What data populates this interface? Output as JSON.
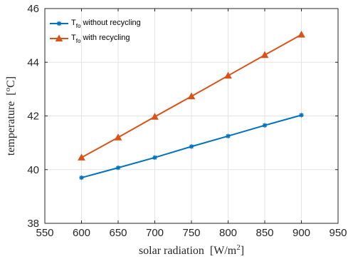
{
  "chart_data": {
    "type": "line",
    "x": [
      600,
      650,
      700,
      750,
      800,
      850,
      900
    ],
    "series": [
      {
        "name": "T",
        "name_subscript": "fo",
        "name_suffix": " without recycling",
        "values": [
          39.7,
          40.07,
          40.45,
          40.86,
          41.25,
          41.65,
          42.03
        ],
        "color": "#0072BD",
        "marker": "asterisk"
      },
      {
        "name": "T",
        "name_subscript": "fo",
        "name_suffix": " with recycling",
        "values": [
          40.45,
          41.2,
          41.97,
          42.73,
          43.5,
          44.27,
          45.03
        ],
        "color": "#D95319",
        "marker": "triangle"
      }
    ],
    "xlim": [
      550,
      950
    ],
    "ylim": [
      38,
      46
    ],
    "xticks": [
      "550",
      "600",
      "650",
      "700",
      "750",
      "800",
      "850",
      "900",
      "950"
    ],
    "yticks": [
      "38",
      "40",
      "42",
      "44",
      "46"
    ],
    "xlabel": "solar radiation",
    "xlabel_unit_base": "[W/m",
    "xlabel_unit_sup": "2",
    "xlabel_unit_close": "]",
    "ylabel": "temperature",
    "ylabel_unit_open": "[",
    "ylabel_unit_sup": "o",
    "ylabel_unit_close": "C]",
    "grid": true,
    "legend_position": "top-left"
  }
}
